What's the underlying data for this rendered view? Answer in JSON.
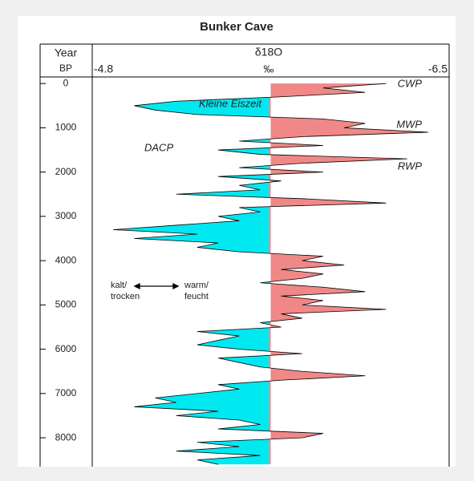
{
  "chart_data": {
    "type": "line",
    "title": "Bunker Cave",
    "x_label": "Year",
    "x_unit": "BP",
    "y_title": "δ18O",
    "y_label": "‰",
    "x": [
      0,
      100,
      200,
      300,
      400,
      500,
      600,
      700,
      800,
      900,
      1000,
      1100,
      1200,
      1300,
      1400,
      1500,
      1600,
      1700,
      1800,
      1900,
      2000,
      2100,
      2200,
      2300,
      2400,
      2500,
      2600,
      2700,
      2800,
      2900,
      3000,
      3100,
      3200,
      3300,
      3400,
      3500,
      3600,
      3700,
      3800,
      3900,
      4000,
      4100,
      4200,
      4300,
      4400,
      4500,
      4600,
      4700,
      4800,
      4900,
      5000,
      5100,
      5200,
      5300,
      5400,
      5500,
      5600,
      5700,
      5800,
      5900,
      6000,
      6100,
      6200,
      6300,
      6400,
      6500,
      6600,
      6700,
      6800,
      6900,
      7000,
      7100,
      7200,
      7300,
      7400,
      7500,
      7600,
      7700,
      7800,
      7900,
      8000,
      8100,
      8200,
      8300,
      8400,
      8500,
      8600
    ],
    "values": [
      -6.2,
      -5.9,
      -6.1,
      -5.7,
      -5.2,
      -5.0,
      -5.1,
      -5.3,
      -5.9,
      -6.1,
      -6.0,
      -6.4,
      -5.8,
      -5.5,
      -5.9,
      -5.4,
      -5.6,
      -6.3,
      -5.8,
      -5.5,
      -5.9,
      -5.4,
      -5.7,
      -5.5,
      -5.6,
      -5.2,
      -5.8,
      -6.2,
      -5.5,
      -5.6,
      -5.4,
      -5.5,
      -5.2,
      -4.9,
      -5.3,
      -5.0,
      -5.4,
      -5.3,
      -5.5,
      -5.9,
      -5.8,
      -6.0,
      -5.7,
      -5.9,
      -5.8,
      -5.6,
      -5.9,
      -6.1,
      -5.7,
      -5.9,
      -5.8,
      -6.2,
      -5.7,
      -5.8,
      -5.6,
      -5.7,
      -5.3,
      -5.5,
      -5.4,
      -5.3,
      -5.5,
      -5.8,
      -5.4,
      -5.5,
      -5.6,
      -5.8,
      -6.1,
      -5.7,
      -5.4,
      -5.5,
      -5.3,
      -5.1,
      -5.2,
      -5.0,
      -5.4,
      -5.2,
      -5.5,
      -5.6,
      -5.4,
      -5.9,
      -5.8,
      -5.3,
      -5.5,
      -5.2,
      -5.6,
      -5.3,
      -5.4
    ],
    "color": "#000000",
    "fill_low": "#00e8f0",
    "fill_high": "#f08888",
    "xlim": [
      -130,
      8650
    ],
    "xticks": [
      0,
      1000,
      2000,
      3000,
      4000,
      5000,
      6000,
      7000,
      8000
    ],
    "ylim": [
      -4.8,
      -6.5
    ],
    "yticks": [
      -4.8,
      -6.5
    ],
    "annotations": [
      "CWP",
      "MWP",
      "RWP",
      "DACP",
      "Kleine Eiszeit",
      "kalt/",
      "trocken",
      "warm/",
      "feucht"
    ]
  }
}
